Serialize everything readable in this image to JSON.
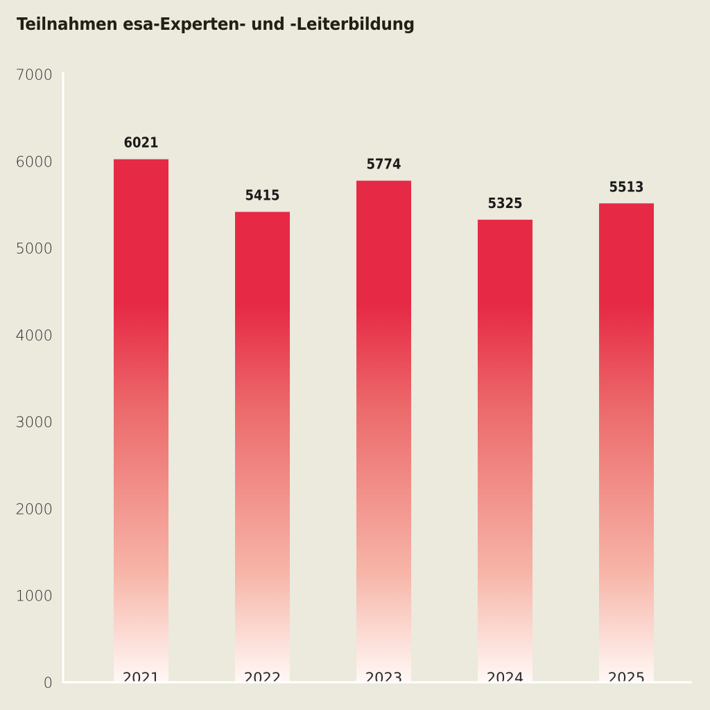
{
  "chart_data": {
    "type": "bar",
    "title": "Teilnahmen esa-Experten- und -Leiterbildung",
    "categories": [
      "2021",
      "2022",
      "2023",
      "2024",
      "2025"
    ],
    "values": [
      6021,
      5415,
      5774,
      5325,
      5513
    ],
    "data_labels": [
      "6021",
      "5415",
      "5774",
      "5325",
      "5513"
    ],
    "xlabel": "",
    "ylabel": "",
    "ylim": [
      0,
      7000
    ],
    "yticks": [
      0,
      1000,
      2000,
      3000,
      4000,
      5000,
      6000,
      7000
    ],
    "grid": false,
    "legend": "none",
    "colors": {
      "bar_top": "#e62a45",
      "bar_bottom": "#fff8f5",
      "background": "#ece9dd",
      "axis": "#ffffff",
      "title": "#231f13"
    }
  }
}
